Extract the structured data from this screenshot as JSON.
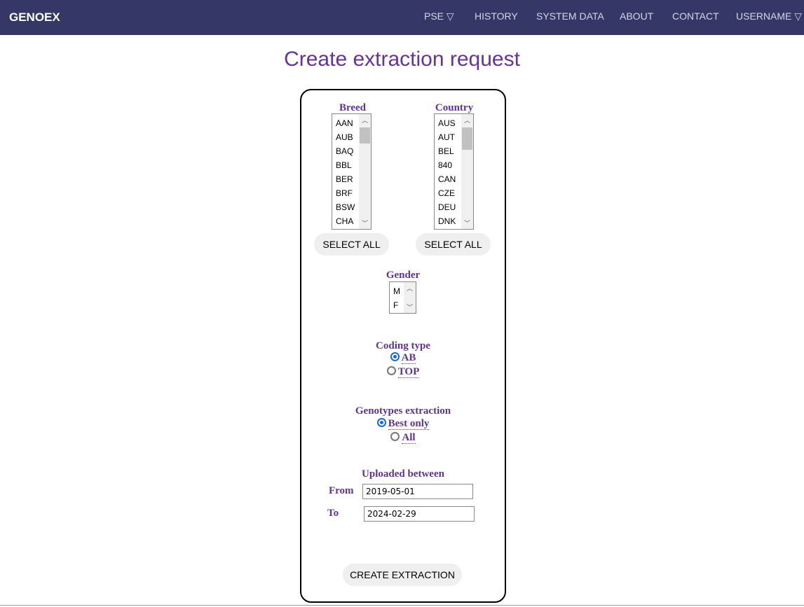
{
  "nav": {
    "brand": "GENOEX",
    "items": [
      "PSE ▽",
      "HISTORY",
      "SYSTEM DATA",
      "ABOUT",
      "CONTACT",
      "USERNAME ▽"
    ]
  },
  "title": "Create extraction request",
  "breed": {
    "label": "Breed",
    "options": [
      "AAN",
      "AUB",
      "BAQ",
      "BBL",
      "BER",
      "BRF",
      "BSW",
      "CHA"
    ],
    "select_all": "SELECT ALL"
  },
  "country": {
    "label": "Country",
    "options": [
      "AUS",
      "AUT",
      "BEL",
      "840",
      "CAN",
      "CZE",
      "DEU",
      "DNK"
    ],
    "select_all": "SELECT ALL"
  },
  "gender": {
    "label": "Gender",
    "options": [
      "M",
      "F"
    ]
  },
  "coding": {
    "label": "Coding type",
    "options": [
      "AB",
      "TOP"
    ],
    "selected": "AB"
  },
  "genotypes": {
    "label": "Genotypes extraction",
    "options": [
      "Best only",
      "All"
    ],
    "selected": "Best only"
  },
  "uploaded": {
    "label": "Uploaded between",
    "from_label": "From",
    "from_value": "2019-05-01",
    "to_label": "To",
    "to_value": "2024-02-29"
  },
  "submit": "CREATE EXTRACTION"
}
